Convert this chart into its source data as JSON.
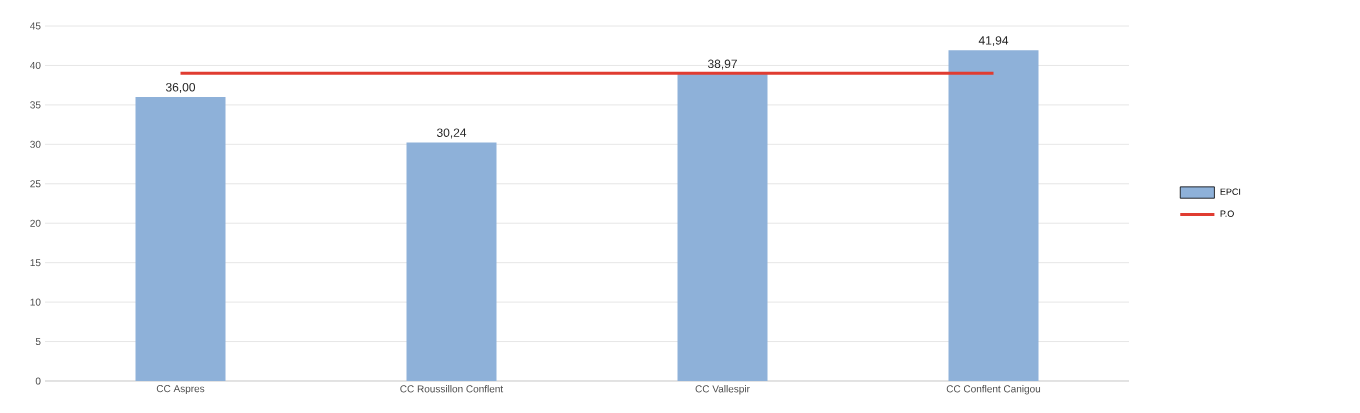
{
  "chart_data": {
    "type": "bar",
    "categories": [
      "CC Aspres",
      "CC Roussillon Conflent",
      "CC Vallespir",
      "CC Conflent Canigou"
    ],
    "series": [
      {
        "name": "EPCI",
        "color": "#8eb1d9",
        "values": [
          36.0,
          30.24,
          38.97,
          41.94
        ],
        "value_labels": [
          "36,00",
          "30,24",
          "38,97",
          "41,94"
        ]
      },
      {
        "name": "P.O",
        "type": "line",
        "color": "#e03c31",
        "values": [
          39.0,
          39.0,
          39.0,
          39.0
        ]
      }
    ],
    "ylim": [
      0,
      45
    ],
    "yticks": [
      0,
      5,
      10,
      15,
      20,
      25,
      30,
      35,
      40,
      45
    ],
    "grid": "y",
    "legend": "right",
    "marker": "none",
    "line_style": "solid"
  }
}
